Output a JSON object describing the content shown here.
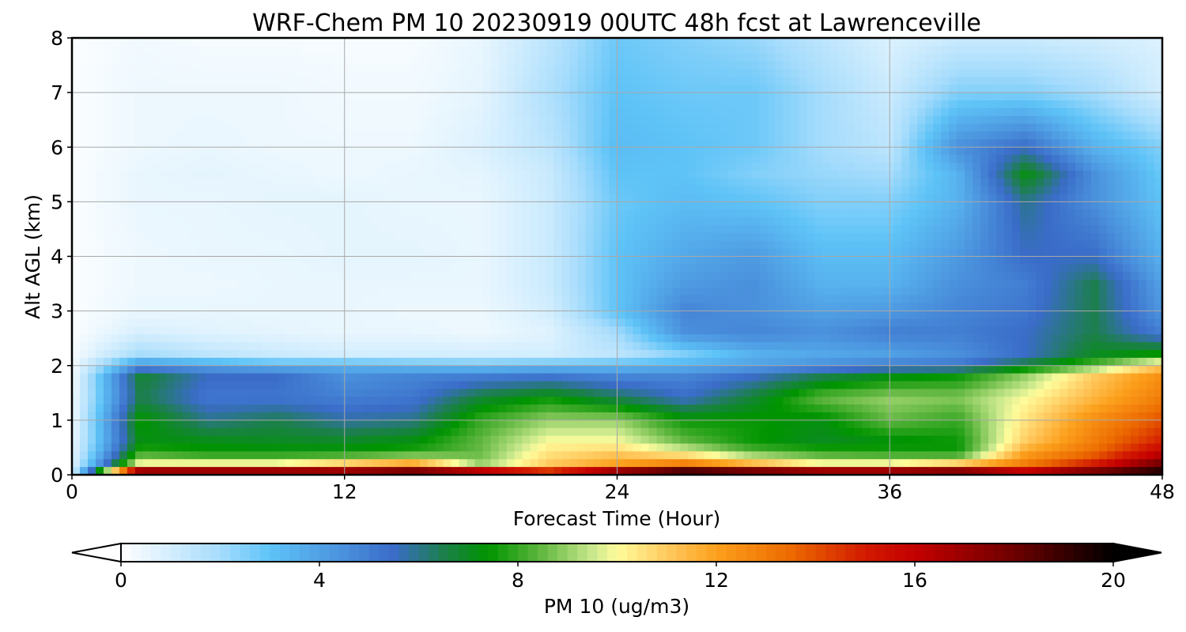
{
  "chart_data": {
    "type": "heatmap",
    "title": "WRF-Chem PM 10  20230919 00UTC 48h fcst at Lawrenceville",
    "xlabel": "Forecast Time (Hour)",
    "ylabel": "Alt AGL (km)",
    "xlim": [
      0,
      48
    ],
    "ylim": [
      0,
      8
    ],
    "x_ticks": [
      "0",
      "12",
      "24",
      "36",
      "48"
    ],
    "y_ticks": [
      "0",
      "1",
      "2",
      "3",
      "4",
      "5",
      "6",
      "7",
      "8"
    ],
    "grid": true,
    "grid_x": {
      "cols": 17,
      "values": [
        0,
        3,
        6,
        9,
        12,
        15,
        18,
        21,
        24,
        27,
        30,
        33,
        36,
        39,
        42,
        45,
        48
      ]
    },
    "grid_y": {
      "rows": 19,
      "values": [
        0,
        0.1,
        0.2,
        0.4,
        0.6,
        1.0,
        1.4,
        1.8,
        2.0,
        2.2,
        2.6,
        3.0,
        3.5,
        4.0,
        5.0,
        5.5,
        6.0,
        7.0,
        8.0
      ]
    },
    "z": [
      [
        0.8,
        19,
        19,
        19,
        19,
        19.5,
        19,
        18,
        19,
        20,
        19.5,
        19,
        19,
        19.5,
        18,
        19,
        20
      ],
      [
        0.8,
        16,
        16,
        16,
        16,
        17,
        15,
        13,
        16,
        18,
        17,
        16,
        16,
        16.5,
        15,
        17,
        19
      ],
      [
        0.6,
        10,
        10,
        10,
        11,
        12,
        9,
        11,
        12,
        13,
        11.5,
        10,
        10,
        11,
        13,
        15,
        18
      ],
      [
        0.5,
        8,
        7.5,
        7.5,
        7.5,
        7.8,
        8.5,
        10.5,
        11,
        10,
        8.5,
        8,
        7.8,
        7.5,
        12,
        13.5,
        16
      ],
      [
        0.4,
        7.2,
        7.2,
        7,
        7,
        7.3,
        8.5,
        10,
        10,
        8.5,
        7.5,
        7,
        7.2,
        7.5,
        11,
        13,
        15
      ],
      [
        0.3,
        7.5,
        6,
        6.5,
        5.8,
        6,
        8,
        9,
        9,
        7.5,
        7.5,
        7.2,
        8.5,
        8,
        10.5,
        12.5,
        14
      ],
      [
        0.3,
        6.5,
        5.2,
        5.2,
        5,
        5.2,
        6.8,
        7.5,
        6.5,
        5.5,
        6.8,
        8.5,
        9,
        8.8,
        10,
        11.5,
        13
      ],
      [
        0.2,
        6.8,
        5.5,
        5.5,
        4.5,
        4.8,
        5,
        5.2,
        4.8,
        4.8,
        5.5,
        6.5,
        7.2,
        7.5,
        9,
        11,
        12.5
      ],
      [
        0.2,
        4.5,
        4,
        3.5,
        3.5,
        3.2,
        3,
        3.2,
        3.2,
        3.5,
        4,
        4.5,
        5,
        5.2,
        6.8,
        8.5,
        11
      ],
      [
        0.2,
        2,
        1.5,
        1.2,
        1,
        1,
        1,
        1,
        1.5,
        2.5,
        3.5,
        3.8,
        4,
        4.5,
        5.5,
        7,
        7.5
      ],
      [
        0.1,
        0.9,
        0.7,
        0.6,
        0.5,
        0.5,
        0.4,
        0.7,
        2,
        4.5,
        4.8,
        4.5,
        5,
        5,
        5.5,
        6.5,
        5
      ],
      [
        0.1,
        0.5,
        0.5,
        0.5,
        0.5,
        0.4,
        0.4,
        1,
        3,
        4.8,
        4.5,
        4,
        4.2,
        4.8,
        5.2,
        6.5,
        4.3
      ],
      [
        0.1,
        0.4,
        0.4,
        0.5,
        0.5,
        0.5,
        0.5,
        1.2,
        3,
        4.2,
        4.5,
        3.5,
        3.5,
        4.5,
        5,
        6.5,
        4
      ],
      [
        0.1,
        0.4,
        0.5,
        0.5,
        0.6,
        0.6,
        0.5,
        1.2,
        3,
        3.8,
        4.2,
        3.2,
        3.2,
        4.2,
        5.5,
        5.5,
        3.5
      ],
      [
        0.1,
        0.5,
        0.5,
        0.6,
        0.6,
        0.5,
        0.5,
        1.2,
        2.8,
        3.2,
        3,
        2.5,
        2.5,
        3.5,
        6,
        4.5,
        3
      ],
      [
        0.1,
        0.5,
        0.6,
        0.5,
        0.4,
        0.5,
        0.6,
        1.2,
        3,
        3,
        2.5,
        2.2,
        2,
        3.5,
        7.2,
        4.5,
        2.8
      ],
      [
        0.1,
        0.4,
        0.5,
        0.4,
        0.4,
        0.4,
        0.8,
        1.5,
        3.2,
        3,
        2.8,
        2,
        1.5,
        4.5,
        5.5,
        3.5,
        2.5
      ],
      [
        0.1,
        0.4,
        0.4,
        0.4,
        0.3,
        0.3,
        0.6,
        1.8,
        3,
        2.8,
        2.8,
        2,
        1.2,
        2.5,
        2.5,
        2,
        1
      ],
      [
        0.1,
        0.3,
        0.2,
        0.2,
        0.2,
        0.2,
        0.5,
        1.5,
        2.8,
        2.5,
        2.2,
        1.5,
        0.8,
        1.2,
        1.2,
        1,
        0.8
      ]
    ],
    "colorbar": {
      "label": "PM 10  (ug/m3)",
      "min": 0,
      "max": 20,
      "ticks": [
        "0",
        "4",
        "8",
        "12",
        "16",
        "20"
      ],
      "extend": "both",
      "stops": [
        {
          "v": 0,
          "c": "#ffffff"
        },
        {
          "v": 2,
          "c": "#a6dcfc"
        },
        {
          "v": 3,
          "c": "#5ec3f7"
        },
        {
          "v": 4.5,
          "c": "#4a90dc"
        },
        {
          "v": 5.5,
          "c": "#3a6cc8"
        },
        {
          "v": 6.5,
          "c": "#1c7f4c"
        },
        {
          "v": 7.4,
          "c": "#009400"
        },
        {
          "v": 8.4,
          "c": "#5ab43c"
        },
        {
          "v": 9.5,
          "c": "#c9e88d"
        },
        {
          "v": 10,
          "c": "#fffc9c"
        },
        {
          "v": 11,
          "c": "#ffca60"
        },
        {
          "v": 12,
          "c": "#fca01c"
        },
        {
          "v": 13.5,
          "c": "#ec6a00"
        },
        {
          "v": 15,
          "c": "#d21a00"
        },
        {
          "v": 16,
          "c": "#c40000"
        },
        {
          "v": 18,
          "c": "#6e0000"
        },
        {
          "v": 20,
          "c": "#000000"
        }
      ]
    }
  }
}
